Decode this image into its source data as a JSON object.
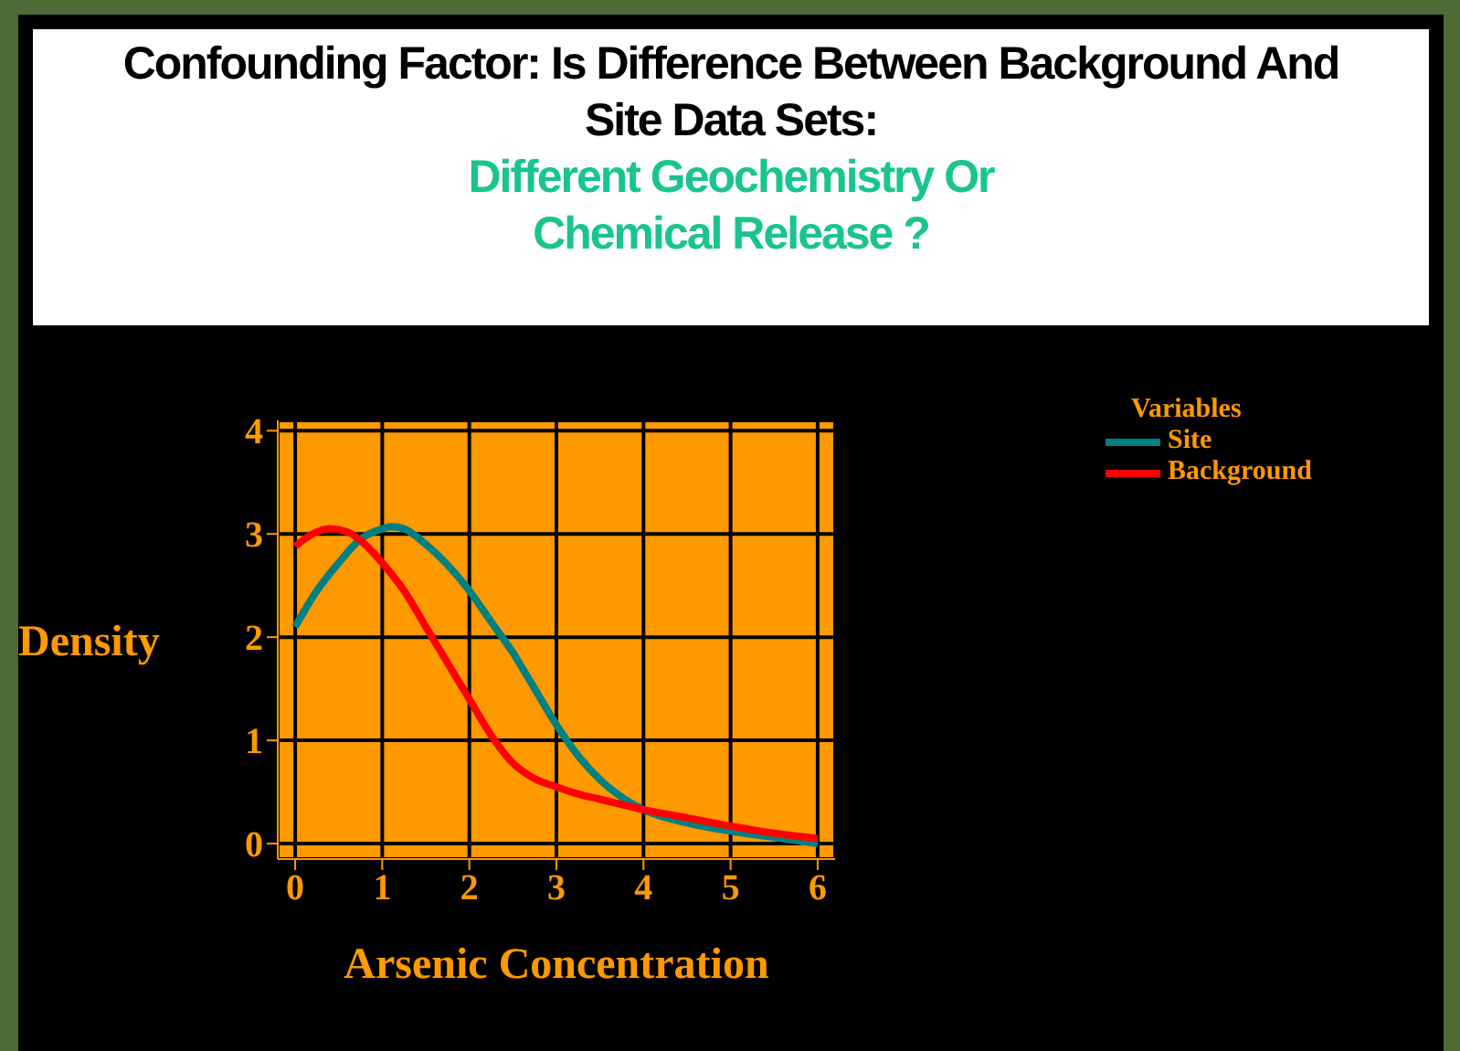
{
  "chart_data": {
    "type": "line",
    "title": "Confounding Factor: Is Difference Between Background And Site Data Sets:",
    "subtitle": "Different Geochemistry Or Chemical Release ?",
    "xlabel": "Arsenic Concentration",
    "ylabel": "Density",
    "legend_title": "Variables",
    "legend": "top right",
    "grid": true,
    "marker": "none",
    "line_style": "solid",
    "xlim": [
      -0.2,
      6.2
    ],
    "xticks": [
      0,
      1,
      2,
      3,
      4,
      5,
      6
    ],
    "ylim": [
      -0.15,
      4.1
    ],
    "yticks": [
      0,
      1,
      2,
      3,
      4
    ],
    "series": [
      {
        "name": "Site",
        "color": "#008080",
        "x": [
          0,
          0.25,
          0.5,
          0.75,
          1,
          1.1,
          1.25,
          1.5,
          1.75,
          2,
          2.25,
          2.5,
          2.75,
          3,
          3.25,
          3.5,
          3.75,
          4,
          4.5,
          5,
          5.5,
          6
        ],
        "values": [
          2.1,
          2.45,
          2.72,
          2.95,
          3.05,
          3.07,
          3.05,
          2.9,
          2.7,
          2.45,
          2.15,
          1.85,
          1.5,
          1.15,
          0.85,
          0.62,
          0.45,
          0.33,
          0.2,
          0.12,
          0.06,
          0.0
        ]
      },
      {
        "name": "Background",
        "color": "#ff0000",
        "x": [
          0,
          0.2,
          0.4,
          0.6,
          0.8,
          1,
          1.25,
          1.5,
          1.75,
          2,
          2.25,
          2.5,
          2.75,
          3,
          3.25,
          3.5,
          4,
          4.5,
          5,
          5.5,
          6
        ],
        "values": [
          2.88,
          3.0,
          3.05,
          3.02,
          2.9,
          2.72,
          2.45,
          2.1,
          1.75,
          1.4,
          1.05,
          0.78,
          0.63,
          0.55,
          0.48,
          0.43,
          0.33,
          0.25,
          0.17,
          0.1,
          0.05
        ]
      }
    ]
  }
}
